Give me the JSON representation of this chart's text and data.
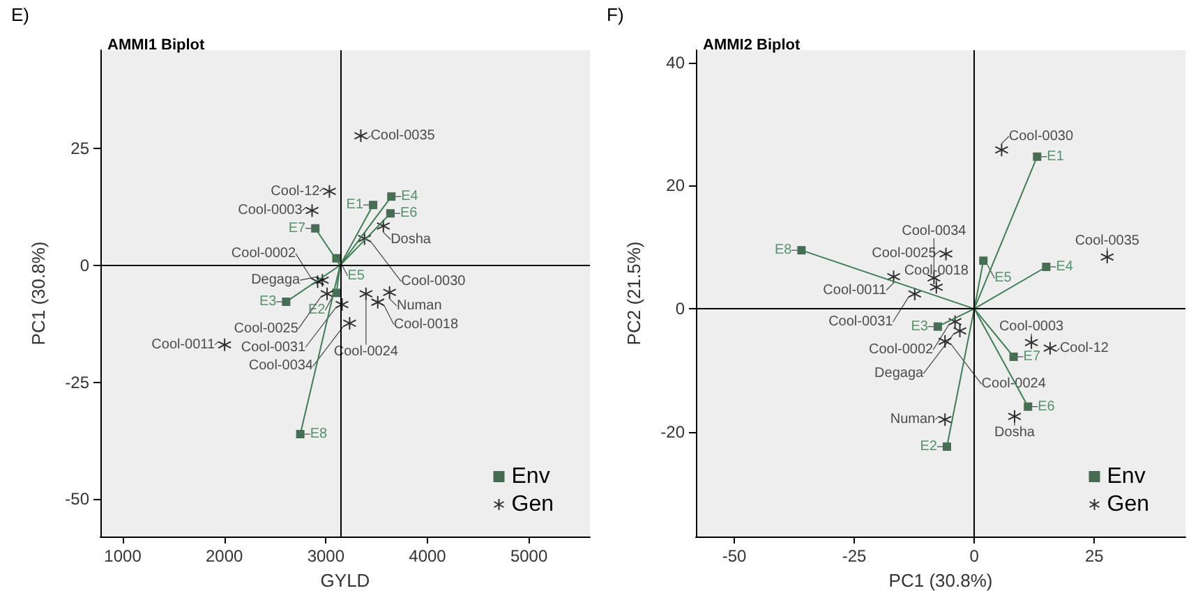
{
  "chart_data": [
    {
      "type": "scatter",
      "title": "AMMI1 Biplot",
      "annotations": [
        "E)"
      ],
      "xlabel": "GYLD",
      "ylabel": "PC1 (30.8%)",
      "xlim": [
        780,
        5600
      ],
      "xticks": [
        1000,
        2000,
        3000,
        4000,
        5000
      ],
      "ylim": [
        -58,
        46
      ],
      "yticks": [
        -50,
        -25,
        0,
        25
      ],
      "grid": false,
      "legend": "bottom right",
      "ref_lines": [
        {
          "axis": "x",
          "value": 3140
        },
        {
          "axis": "y",
          "value": 0
        }
      ],
      "series": [
        {
          "name": "Env",
          "color": "#1e4a2c",
          "marker": "square",
          "line_style": "solid",
          "x": [
            3465,
            3645,
            3636,
            2896,
            3104,
            3104,
            2609,
            2748
          ],
          "values": [
            12.9,
            14.7,
            11.1,
            7.9,
            1.5,
            -5.9,
            -7.8,
            -36.1
          ],
          "value_labels": [
            "E1",
            "E4",
            "E6",
            "E7",
            "E5",
            "E2",
            "E3",
            "E8"
          ]
        },
        {
          "name": "Gen",
          "color": "#000000",
          "marker": "cross",
          "x": [
            3344,
            3035,
            2864,
            3566,
            3381,
            2965,
            2919,
            3012,
            3627,
            3511,
            3395,
            2003,
            3159,
            3234
          ],
          "values": [
            27.7,
            15.8,
            11.7,
            8.4,
            5.7,
            -3.2,
            -3.5,
            -6.1,
            -5.8,
            -7.9,
            -6.1,
            -17.0,
            -8.4,
            -12.4
          ],
          "value_labels": [
            "Cool-0035",
            "Cool-12",
            "Cool-0003",
            "Dosha",
            "Cool-0030",
            "Degaga",
            "Cool-0002",
            "Cool-0025",
            "Numan",
            "Cool-0018",
            "Cool-0024",
            "Cool-0011",
            "Cool-0031",
            "Cool-0034"
          ]
        }
      ]
    },
    {
      "type": "scatter",
      "title": "AMMI2 Biplot",
      "annotations": [
        "F)"
      ],
      "xlabel": "PC1 (30.8%)",
      "ylabel": "PC2 (21.5%)",
      "xlim": [
        -58,
        44
      ],
      "xticks": [
        -50,
        -25,
        0,
        25
      ],
      "ylim": [
        -37,
        42
      ],
      "yticks": [
        -20,
        0,
        20,
        40
      ],
      "grid": false,
      "legend": "bottom right",
      "ref_lines": [
        {
          "axis": "x",
          "value": 0
        },
        {
          "axis": "y",
          "value": 0
        }
      ],
      "series": [
        {
          "name": "Env",
          "color": "#1e4a2c",
          "marker": "square",
          "line_style": "solid",
          "x": [
            13.1,
            -36.0,
            1.9,
            15.0,
            -7.6,
            8.2,
            11.2,
            -5.7
          ],
          "values": [
            24.7,
            9.5,
            7.8,
            6.8,
            -2.9,
            -7.8,
            -15.9,
            -22.4
          ],
          "value_labels": [
            "E1",
            "E8",
            "E5",
            "E4",
            "E3",
            "E7",
            "E6",
            "E2"
          ]
        },
        {
          "name": "Gen",
          "color": "#000000",
          "marker": "cross",
          "x": [
            5.7,
            -5.9,
            27.7,
            -8.4,
            -16.8,
            -12.4,
            -7.9,
            -4.0,
            -3.0,
            -6.1,
            11.9,
            15.8,
            -6.1,
            8.4
          ],
          "values": [
            25.8,
            8.9,
            8.4,
            5.0,
            5.2,
            2.4,
            3.5,
            -2.1,
            -3.6,
            -5.3,
            -5.5,
            -6.4,
            -18.0,
            -17.5
          ],
          "value_labels": [
            "Cool-0030",
            "Cool-0025",
            "Cool-0035",
            "Cool-0034",
            "Cool-0011",
            "Cool-0031",
            "Cool-0018",
            "Cool-0002",
            "Degaga",
            "Cool-0024",
            "Cool-0003",
            "Cool-12",
            "Numan",
            "Dosha"
          ]
        }
      ]
    }
  ]
}
